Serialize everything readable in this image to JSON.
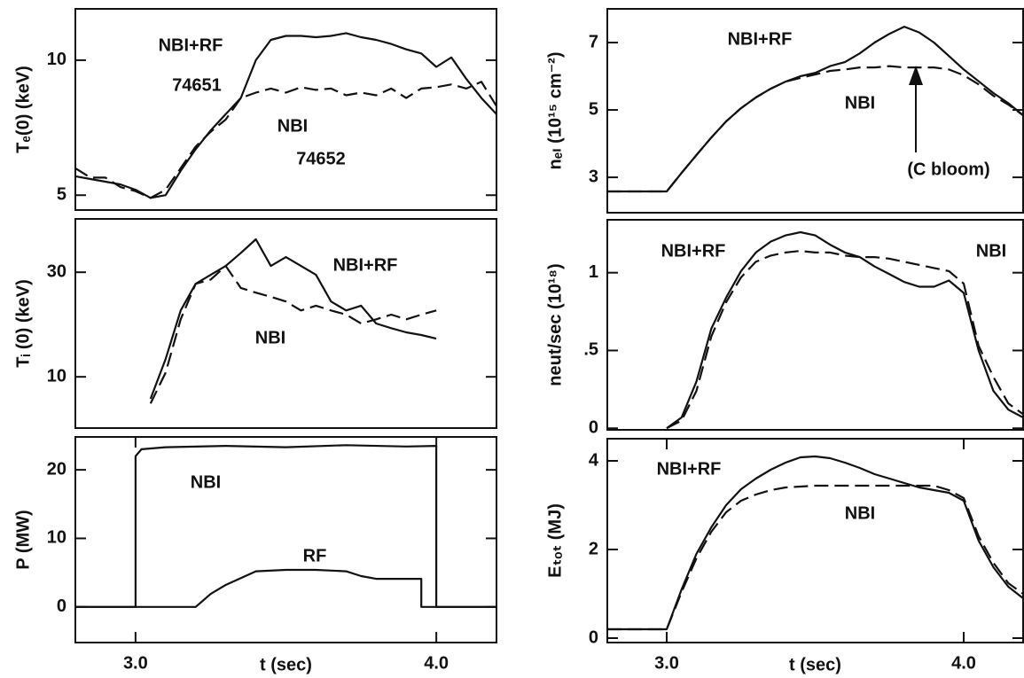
{
  "chart_data": [
    {
      "type": "line",
      "ylabel": "Tₑ(0) (keV)",
      "xlim": [
        2.8,
        4.2
      ],
      "ylim": [
        4.45,
        11.9
      ],
      "yticks": [
        5,
        10
      ],
      "x": [
        2.8,
        2.85,
        2.9,
        2.95,
        3.0,
        3.05,
        3.1,
        3.15,
        3.2,
        3.25,
        3.3,
        3.35,
        3.4,
        3.45,
        3.5,
        3.55,
        3.6,
        3.65,
        3.7,
        3.75,
        3.8,
        3.85,
        3.9,
        3.95,
        4.0,
        4.05,
        4.1,
        4.15,
        4.2
      ],
      "series": [
        {
          "name": "NBI+RF",
          "color": "#111111",
          "style": "solid",
          "values": [
            5.7,
            5.6,
            5.5,
            5.4,
            5.2,
            4.9,
            5.0,
            5.9,
            6.7,
            7.4,
            8.0,
            8.6,
            10.0,
            10.75,
            10.9,
            10.9,
            10.85,
            10.9,
            11.0,
            10.85,
            10.75,
            10.6,
            10.4,
            10.25,
            9.75,
            10.1,
            9.3,
            8.6,
            8.0
          ]
        },
        {
          "name": "NBI",
          "color": "#111111",
          "style": "dashed",
          "values": [
            6.0,
            5.65,
            5.65,
            5.3,
            5.15,
            4.9,
            5.2,
            6.0,
            6.8,
            7.35,
            7.8,
            8.6,
            8.8,
            8.95,
            8.8,
            9.0,
            8.9,
            8.95,
            8.7,
            8.8,
            8.7,
            8.95,
            8.6,
            8.95,
            9.0,
            9.1,
            8.95,
            9.2,
            8.3
          ]
        }
      ],
      "annotations": [
        "74651",
        "74652"
      ]
    },
    {
      "type": "line",
      "ylabel": "Tᵢ (0) (keV)",
      "xlim": [
        2.8,
        4.2
      ],
      "ylim": [
        0.2,
        40.2
      ],
      "yticks": [
        10,
        30
      ],
      "x": [
        2.8,
        2.85,
        2.9,
        2.95,
        3.0,
        3.05,
        3.1,
        3.15,
        3.2,
        3.25,
        3.3,
        3.35,
        3.4,
        3.45,
        3.5,
        3.55,
        3.6,
        3.65,
        3.7,
        3.75,
        3.8,
        3.85,
        3.9,
        3.95,
        4.0,
        4.05,
        4.1,
        4.15,
        4.2
      ],
      "series": [
        {
          "name": "NBI+RF",
          "color": "#111111",
          "style": "solid",
          "values": [
            null,
            null,
            null,
            null,
            null,
            5.8,
            13.4,
            22.7,
            27.8,
            29.5,
            31.2,
            33.7,
            36.3,
            31.2,
            32.9,
            31.2,
            29.5,
            24.4,
            22.7,
            23.6,
            20.2,
            19.3,
            18.5,
            18.0,
            17.3,
            null,
            null,
            null,
            null
          ]
        },
        {
          "name": "NBI",
          "color": "#111111",
          "style": "dashed",
          "values": [
            null,
            null,
            null,
            null,
            null,
            4.9,
            10.8,
            21,
            27.8,
            28.6,
            31.2,
            27,
            26.1,
            25.3,
            24.4,
            22.7,
            23.6,
            22.7,
            21.9,
            20.2,
            21,
            21.9,
            21,
            21.9,
            22.7,
            null,
            null,
            null,
            null
          ]
        }
      ]
    },
    {
      "type": "line",
      "ylabel": "P (MW)",
      "xlabel": "t (sec)",
      "xlim": [
        2.8,
        4.2
      ],
      "ylim": [
        -5.2,
        24.8
      ],
      "yticks": [
        0,
        10,
        20
      ],
      "xticks": [
        {
          "value": 3,
          "label": "3.0"
        },
        {
          "value": 4,
          "label": "4.0"
        }
      ],
      "series": [
        {
          "name": "NBI",
          "color": "#111111",
          "style": "solid",
          "x": [
            2.8,
            3.0,
            3.0,
            3.02,
            3.1,
            3.3,
            3.5,
            3.7,
            3.9,
            4.0,
            4.0,
            4.2
          ],
          "values": [
            0,
            0,
            22,
            23,
            23.3,
            23.5,
            23.3,
            23.6,
            23.4,
            23.5,
            0,
            0
          ]
        },
        {
          "name": "RF",
          "color": "#111111",
          "style": "solid",
          "x": [
            2.8,
            3.2,
            3.25,
            3.3,
            3.4,
            3.5,
            3.6,
            3.7,
            3.75,
            3.8,
            3.9,
            3.95,
            3.95,
            4.2
          ],
          "values": [
            0,
            0,
            1.9,
            3.2,
            5.2,
            5.4,
            5.4,
            5.2,
            4.5,
            4.1,
            4.1,
            4.1,
            0,
            0
          ]
        }
      ]
    },
    {
      "type": "line",
      "ylabel": "nₑₗ (10¹⁵ cm⁻²)",
      "xlim": [
        2.8,
        4.2
      ],
      "ylim": [
        1.95,
        8
      ],
      "yticks": [
        3,
        5,
        7
      ],
      "x": [
        2.8,
        2.85,
        2.9,
        2.95,
        3.0,
        3.05,
        3.1,
        3.15,
        3.2,
        3.25,
        3.3,
        3.35,
        3.4,
        3.45,
        3.5,
        3.55,
        3.6,
        3.65,
        3.7,
        3.75,
        3.8,
        3.85,
        3.9,
        3.95,
        4.0,
        4.05,
        4.1,
        4.15,
        4.2
      ],
      "series": [
        {
          "name": "NBI+RF",
          "color": "#111111",
          "style": "solid",
          "values": [
            2.58,
            2.58,
            2.58,
            2.58,
            2.58,
            3.13,
            3.66,
            4.18,
            4.66,
            5.05,
            5.37,
            5.63,
            5.84,
            6.0,
            6.1,
            6.3,
            6.42,
            6.68,
            7.0,
            7.26,
            7.47,
            7.3,
            7.0,
            6.6,
            6.2,
            5.85,
            5.5,
            5.2,
            4.84
          ]
        },
        {
          "name": "NBI",
          "color": "#111111",
          "style": "dashed",
          "values": [
            2.58,
            2.58,
            2.58,
            2.58,
            2.58,
            3.13,
            3.66,
            4.18,
            4.66,
            5.05,
            5.37,
            5.63,
            5.84,
            5.95,
            6.05,
            6.16,
            6.2,
            6.26,
            6.26,
            6.3,
            6.26,
            6.26,
            6.26,
            6.2,
            6.03,
            5.76,
            5.42,
            5.16,
            4.84
          ]
        }
      ],
      "annotations": [
        "(C bloom)"
      ]
    },
    {
      "type": "line",
      "ylabel": "neut/sec (10¹⁸)",
      "xlim": [
        2.8,
        4.2
      ],
      "ylim": [
        -0.01,
        1.34
      ],
      "yticks": [
        0,
        {
          "value": 0.5,
          "label": ".5"
        },
        1
      ],
      "x": [
        2.8,
        2.85,
        2.9,
        2.95,
        3.0,
        3.05,
        3.1,
        3.15,
        3.2,
        3.25,
        3.3,
        3.35,
        3.4,
        3.45,
        3.5,
        3.55,
        3.6,
        3.65,
        3.7,
        3.75,
        3.8,
        3.85,
        3.9,
        3.95,
        4.0,
        4.05,
        4.1,
        4.15,
        4.2
      ],
      "series": [
        {
          "name": "NBI+RF",
          "color": "#111111",
          "style": "solid",
          "values": [
            null,
            null,
            null,
            null,
            0,
            0.07,
            0.3,
            0.64,
            0.84,
            1.01,
            1.13,
            1.2,
            1.24,
            1.26,
            1.24,
            1.18,
            1.13,
            1.1,
            1.04,
            0.99,
            0.94,
            0.91,
            0.91,
            0.95,
            0.87,
            0.5,
            0.24,
            0.12,
            0.07
          ]
        },
        {
          "name": "NBI",
          "color": "#111111",
          "style": "dashed",
          "values": [
            null,
            null,
            null,
            null,
            0,
            0.05,
            0.24,
            0.59,
            0.81,
            0.97,
            1.07,
            1.11,
            1.13,
            1.14,
            1.13,
            1.13,
            1.11,
            1.1,
            1.1,
            1.09,
            1.07,
            1.05,
            1.03,
            1.01,
            0.93,
            0.53,
            0.33,
            0.16,
            0.09
          ]
        }
      ]
    },
    {
      "type": "line",
      "ylabel": "Eₜₒₜ (MJ)",
      "xlabel": "t (sec)",
      "xlim": [
        2.8,
        4.2
      ],
      "ylim": [
        -0.1,
        4.5
      ],
      "yticks": [
        0,
        2,
        4
      ],
      "xticks": [
        {
          "value": 3,
          "label": "3.0"
        },
        {
          "value": 4,
          "label": "4.0"
        }
      ],
      "x": [
        2.8,
        2.85,
        2.9,
        2.95,
        3.0,
        3.05,
        3.1,
        3.15,
        3.2,
        3.25,
        3.3,
        3.35,
        3.4,
        3.45,
        3.5,
        3.55,
        3.6,
        3.65,
        3.7,
        3.75,
        3.8,
        3.85,
        3.9,
        3.95,
        4.0,
        4.05,
        4.1,
        4.15,
        4.2
      ],
      "series": [
        {
          "name": "NBI+RF",
          "color": "#111111",
          "style": "solid",
          "values": [
            0.2,
            0.2,
            0.2,
            0.2,
            0.2,
            1.1,
            1.9,
            2.5,
            3.0,
            3.36,
            3.6,
            3.8,
            3.96,
            4.08,
            4.1,
            4.06,
            3.96,
            3.84,
            3.7,
            3.6,
            3.5,
            3.4,
            3.34,
            3.28,
            3.1,
            2.2,
            1.6,
            1.16,
            0.9
          ]
        },
        {
          "name": "NBI",
          "color": "#111111",
          "style": "dashed",
          "values": [
            0.2,
            0.2,
            0.2,
            0.2,
            0.2,
            1.04,
            1.8,
            2.4,
            2.84,
            3.1,
            3.24,
            3.34,
            3.4,
            3.42,
            3.44,
            3.44,
            3.44,
            3.44,
            3.44,
            3.44,
            3.44,
            3.44,
            3.44,
            3.34,
            3.16,
            2.3,
            1.7,
            1.24,
            1.0
          ]
        }
      ]
    }
  ]
}
